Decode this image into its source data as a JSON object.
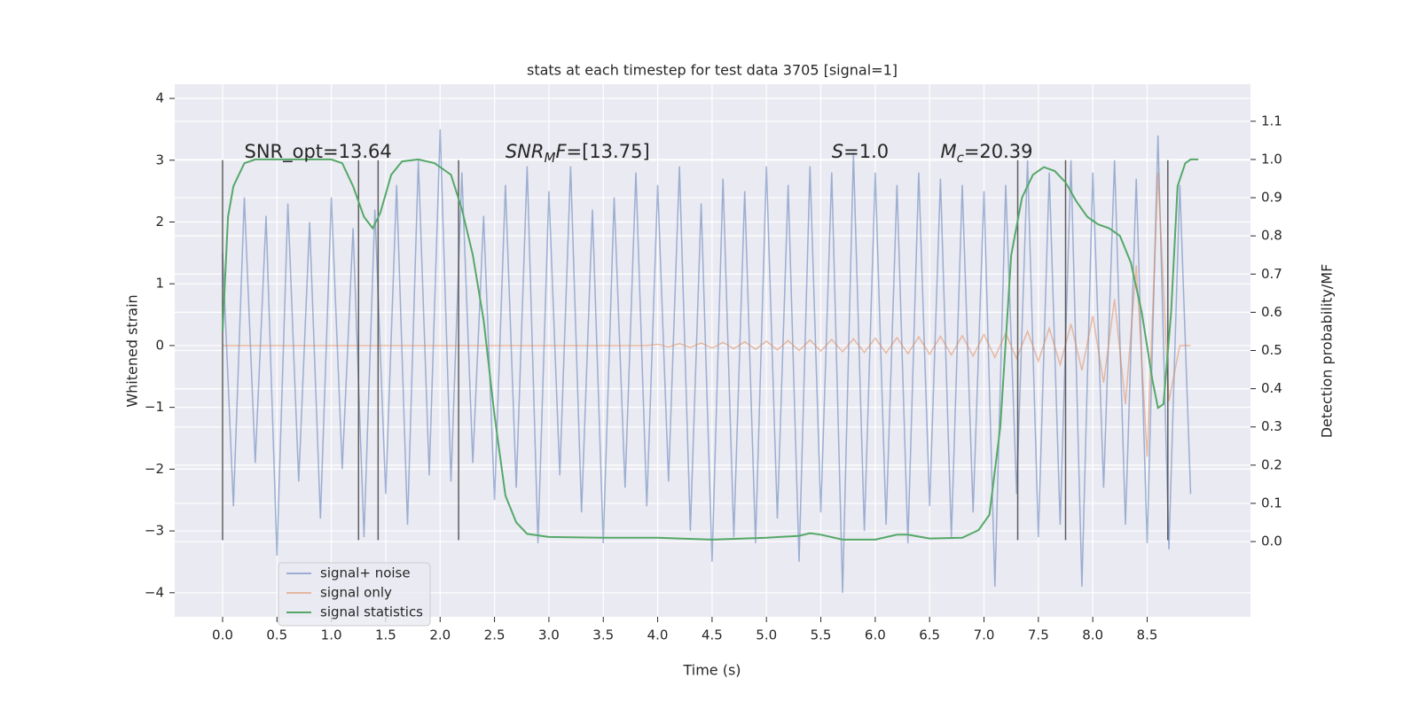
{
  "chart_data": {
    "type": "line",
    "title": "stats at each timestep for test data 3705 [signal=1]",
    "x_label": "Time (s)",
    "y_label": "Whitened strain",
    "y2_label": "Detection probability/MF",
    "xlim": [
      -0.44,
      9.45
    ],
    "ylim": [
      -4.39,
      4.23
    ],
    "y2lim": [
      -0.197,
      1.197
    ],
    "xticks": [
      {
        "value": 0,
        "label": "0.0"
      },
      0.5,
      {
        "value": 1,
        "label": "1.0"
      },
      1.5,
      {
        "value": 2,
        "label": "2.0"
      },
      2.5,
      {
        "value": 3,
        "label": "3.0"
      },
      3.5,
      {
        "value": 4,
        "label": "4.0"
      },
      4.5,
      {
        "value": 5,
        "label": "5.0"
      },
      5.5,
      {
        "value": 6,
        "label": "6.0"
      },
      6.5,
      {
        "value": 7,
        "label": "7.0"
      },
      7.5,
      {
        "value": 8,
        "label": "8.0"
      },
      8.5
    ],
    "yticks": [
      {
        "value": -4,
        "label": "−4"
      },
      {
        "value": -3,
        "label": "−3"
      },
      {
        "value": -2,
        "label": "−2"
      },
      {
        "value": -1,
        "label": "−1"
      },
      0,
      1,
      2,
      3,
      4
    ],
    "y2ticks": [
      {
        "value": 0,
        "label": "0.0"
      },
      0.1,
      0.2,
      0.3,
      0.4,
      0.5,
      0.6,
      0.7,
      0.8,
      0.9,
      {
        "value": 1,
        "label": "1.0"
      },
      1.1
    ],
    "grid": true,
    "legend": "lower left",
    "x": [
      0.0,
      0.1,
      0.2,
      0.3,
      0.4,
      0.5,
      0.6,
      0.7,
      0.8,
      0.9,
      1.0,
      1.1,
      1.2,
      1.3,
      1.4,
      1.5,
      1.6,
      1.7,
      1.8,
      1.9,
      2.0,
      2.1,
      2.2,
      2.3,
      2.4,
      2.5,
      2.6,
      2.7,
      2.8,
      2.9,
      3.0,
      3.1,
      3.2,
      3.3,
      3.4,
      3.5,
      3.6,
      3.7,
      3.8,
      3.9,
      4.0,
      4.1,
      4.2,
      4.3,
      4.4,
      4.5,
      4.6,
      4.7,
      4.8,
      4.9,
      5.0,
      5.1,
      5.2,
      5.3,
      5.4,
      5.5,
      5.6,
      5.7,
      5.8,
      5.9,
      6.0,
      6.1,
      6.2,
      6.3,
      6.4,
      6.5,
      6.6,
      6.7,
      6.8,
      6.9,
      7.0,
      7.1,
      7.2,
      7.3,
      7.4,
      7.5,
      7.6,
      7.7,
      7.8,
      7.9,
      8.0,
      8.1,
      8.2,
      8.3,
      8.4,
      8.5,
      8.6,
      8.7,
      8.8,
      8.9
    ],
    "series": [
      {
        "name": "signal+ noise",
        "color": "#4c72b0",
        "opacity": 0.5,
        "values": [
          1.5,
          -2.6,
          2.4,
          -1.9,
          2.1,
          -3.4,
          2.3,
          -2.2,
          2.0,
          -2.8,
          2.4,
          -2.0,
          1.9,
          -3.1,
          2.2,
          -2.4,
          2.6,
          -2.9,
          3.0,
          -2.1,
          3.5,
          -2.2,
          2.8,
          -1.9,
          2.1,
          -2.5,
          2.6,
          -2.3,
          2.9,
          -3.2,
          2.5,
          -2.1,
          2.9,
          -2.7,
          2.2,
          -3.2,
          2.4,
          -2.3,
          2.8,
          -2.6,
          2.6,
          -2.2,
          2.9,
          -3.0,
          2.3,
          -3.5,
          2.7,
          -3.1,
          2.5,
          -3.2,
          2.9,
          -2.8,
          2.6,
          -3.5,
          2.9,
          -2.7,
          2.8,
          -4.0,
          3.1,
          -3.0,
          2.8,
          -2.9,
          2.6,
          -3.2,
          2.8,
          -2.6,
          2.7,
          -3.1,
          2.6,
          -2.7,
          2.5,
          -3.9,
          2.6,
          -2.4,
          3.0,
          -3.1,
          2.8,
          -2.9,
          3.0,
          -3.9,
          2.8,
          -2.3,
          3.0,
          -2.9,
          2.7,
          -3.2,
          3.4,
          -3.3,
          2.6,
          -2.4
        ]
      },
      {
        "name": "signal only",
        "color": "#dd8452",
        "opacity": 0.5,
        "values": [
          0,
          0,
          0,
          0,
          0,
          0,
          0,
          0,
          0,
          0,
          0,
          0,
          0,
          0,
          0,
          0,
          0,
          0,
          0,
          0,
          0,
          0,
          0,
          0,
          0,
          0,
          0,
          0,
          0,
          0,
          0,
          0,
          0,
          0,
          0,
          0,
          0,
          0,
          0,
          0,
          0.02,
          -0.02,
          0.03,
          -0.03,
          0.04,
          -0.04,
          0.05,
          -0.05,
          0.06,
          -0.06,
          0.07,
          -0.07,
          0.08,
          -0.08,
          0.09,
          -0.09,
          0.1,
          -0.1,
          0.11,
          -0.11,
          0.12,
          -0.12,
          0.13,
          -0.13,
          0.14,
          -0.14,
          0.15,
          -0.15,
          0.16,
          -0.17,
          0.18,
          -0.19,
          0.2,
          -0.21,
          0.23,
          -0.25,
          0.28,
          -0.31,
          0.35,
          -0.4,
          0.48,
          -0.6,
          0.75,
          -0.95,
          1.3,
          -1.8,
          2.8,
          -0.9,
          0,
          0
        ]
      },
      {
        "name": "signal statistics",
        "color": "#55a868",
        "opacity": 1,
        "axis": "y2",
        "x": [
          0,
          0.05,
          0.1,
          0.2,
          0.3,
          0.5,
          1.0,
          1.1,
          1.2,
          1.3,
          1.38,
          1.45,
          1.55,
          1.65,
          1.8,
          1.95,
          2.1,
          2.2,
          2.3,
          2.4,
          2.5,
          2.6,
          2.7,
          2.8,
          3.0,
          3.5,
          4.0,
          4.5,
          5.0,
          5.3,
          5.4,
          5.5,
          5.7,
          6.0,
          6.2,
          6.3,
          6.5,
          6.8,
          6.95,
          7.05,
          7.15,
          7.25,
          7.35,
          7.45,
          7.55,
          7.65,
          7.75,
          7.85,
          7.95,
          8.05,
          8.15,
          8.25,
          8.35,
          8.45,
          8.55,
          8.6,
          8.65,
          8.72,
          8.78,
          8.85,
          8.9,
          8.97
        ],
        "values": [
          0.55,
          0.85,
          0.93,
          0.99,
          1.0,
          1.0,
          1.0,
          0.99,
          0.93,
          0.85,
          0.82,
          0.86,
          0.96,
          0.995,
          1.0,
          0.99,
          0.96,
          0.87,
          0.75,
          0.58,
          0.33,
          0.12,
          0.05,
          0.02,
          0.012,
          0.01,
          0.01,
          0.005,
          0.01,
          0.015,
          0.022,
          0.018,
          0.005,
          0.005,
          0.018,
          0.018,
          0.008,
          0.01,
          0.03,
          0.07,
          0.3,
          0.75,
          0.9,
          0.96,
          0.98,
          0.97,
          0.94,
          0.89,
          0.85,
          0.83,
          0.82,
          0.8,
          0.73,
          0.6,
          0.42,
          0.35,
          0.36,
          0.6,
          0.93,
          0.99,
          1.0,
          1.0
        ]
      }
    ],
    "vlines": {
      "x": [
        0,
        1.25,
        1.43,
        2.17,
        7.31,
        7.75,
        8.69
      ],
      "ymin": -3.15,
      "ymax": 3
    },
    "annotations": [
      {
        "x": 0.2,
        "y": 3,
        "parts": [
          {
            "text": "SNR_opt=13.64"
          }
        ]
      },
      {
        "x": 2.6,
        "y": 3,
        "parts": [
          {
            "text": "SNR",
            "style": "italic"
          },
          {
            "text": "M",
            "style": "sub"
          },
          {
            "text": "F",
            "style": "italic"
          },
          {
            "text": "=[13.75]"
          }
        ]
      },
      {
        "x": 5.6,
        "y": 3,
        "parts": [
          {
            "text": "S",
            "style": "italic"
          },
          {
            "text": "=1.0"
          }
        ]
      },
      {
        "x": 6.6,
        "y": 3,
        "parts": [
          {
            "text": "M",
            "style": "italic"
          },
          {
            "text": "c",
            "style": "sub"
          },
          {
            "text": "=20.39"
          }
        ]
      }
    ]
  }
}
